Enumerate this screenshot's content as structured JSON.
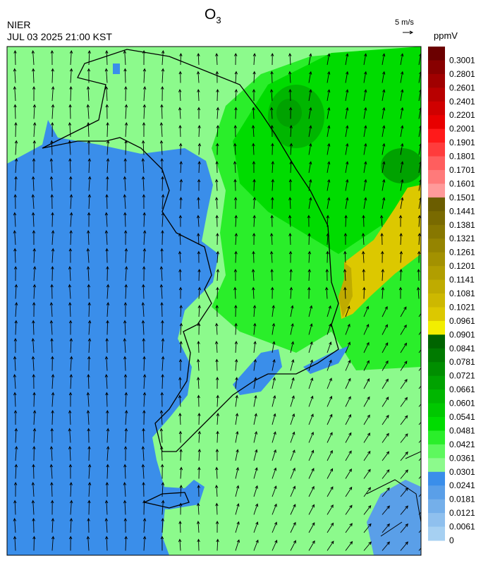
{
  "header": {
    "title": {
      "main": "O",
      "sub": "3"
    },
    "agency": "NIER",
    "timestamp": "JUL 03 2025 21:00 KST",
    "wind_scale": "5 m/s"
  },
  "colorbar": {
    "unit": "ppmV",
    "levels": [
      0.3001,
      0.2801,
      0.2601,
      0.2401,
      0.2201,
      0.2001,
      0.1901,
      0.1801,
      0.1701,
      0.1601,
      0.1501,
      0.1441,
      0.1381,
      0.1321,
      0.1261,
      0.1201,
      0.1141,
      0.1081,
      0.1021,
      0.0961,
      0.0901,
      0.0841,
      0.0781,
      0.0721,
      0.0661,
      0.0601,
      0.0541,
      0.0481,
      0.0421,
      0.0361,
      0.0301,
      0.0241,
      0.0181,
      0.0121,
      0.0061,
      0
    ],
    "colors": [
      "#6b0000",
      "#880000",
      "#a00000",
      "#b80000",
      "#d00000",
      "#e80000",
      "#ff1a1a",
      "#ff3c3c",
      "#ff5e5e",
      "#ff7a7a",
      "#ff9a9a",
      "#6b5d00",
      "#796a00",
      "#877700",
      "#958400",
      "#a39100",
      "#b19e00",
      "#bfab00",
      "#cdb800",
      "#dcc800",
      "#f2ee00",
      "#006400",
      "#007a00",
      "#008e00",
      "#00a200",
      "#00b600",
      "#00c800",
      "#00dc00",
      "#2aee2a",
      "#5ef85e",
      "#8cfa8c",
      "#3a8eea",
      "#5a9fe8",
      "#74afea",
      "#8fc0ee",
      "#a6d0f2"
    ]
  }
}
